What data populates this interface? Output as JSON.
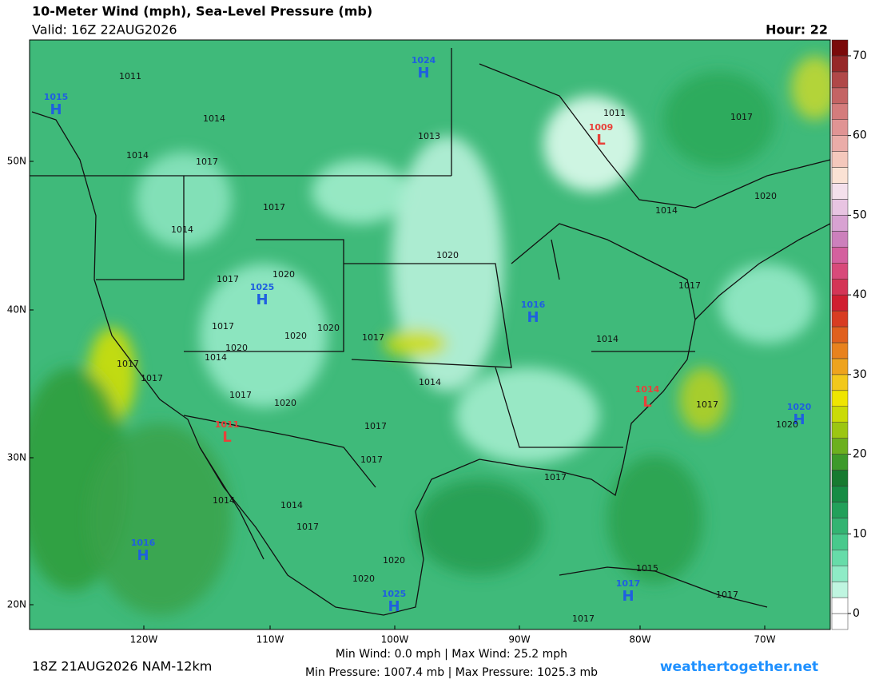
{
  "header": {
    "title": "10-Meter Wind (mph), Sea-Level Pressure (mb)",
    "valid": "Valid: 16Z 22AUG2026",
    "hour": "Hour: 22"
  },
  "axes": {
    "lat_labels": [
      "50N",
      "40N",
      "30N",
      "20N"
    ],
    "lon_labels": [
      "120W",
      "110W",
      "100W",
      "90W",
      "80W",
      "70W"
    ]
  },
  "pressure_centers": [
    {
      "value": "1015",
      "kind": "H"
    },
    {
      "value": "1024",
      "kind": "H"
    },
    {
      "value": "1009",
      "kind": "L"
    },
    {
      "value": "1025",
      "kind": "H"
    },
    {
      "value": "1016",
      "kind": "H"
    },
    {
      "value": "1014",
      "kind": "L"
    },
    {
      "value": "1020",
      "kind": "H"
    },
    {
      "value": "1011",
      "kind": "L"
    },
    {
      "value": "1016",
      "kind": "H"
    },
    {
      "value": "1025",
      "kind": "H"
    },
    {
      "value": "1017",
      "kind": "H"
    }
  ],
  "isobar_labels": [
    "1011",
    "1014",
    "1014",
    "1017",
    "1017",
    "1014",
    "1020",
    "1017",
    "1020",
    "1017",
    "1020",
    "1020",
    "1017",
    "1020",
    "1014",
    "1017",
    "1017",
    "1017",
    "1020",
    "1014",
    "1017",
    "1017",
    "1017",
    "1014",
    "1017",
    "1014",
    "1020",
    "1017",
    "1011",
    "1013",
    "1014",
    "1014",
    "1017",
    "1020",
    "1020",
    "1017",
    "1020",
    "1015",
    "1017",
    "1017"
  ],
  "colorbar": {
    "ylim": [
      -2,
      72
    ],
    "yticks": [
      0,
      10,
      20,
      30,
      40,
      50,
      60,
      70
    ],
    "colors": [
      "#ffffff",
      "#ffffff",
      "#bff5e0",
      "#8eebc6",
      "#66dca9",
      "#48c98c",
      "#33b472",
      "#22a05a",
      "#168c44",
      "#177a30",
      "#3d9a2a",
      "#6cb01e",
      "#9cc612",
      "#cadb06",
      "#efe500",
      "#f2c81c",
      "#eea31e",
      "#e8821e",
      "#e0601e",
      "#d83c22",
      "#d01e30",
      "#d43556",
      "#d84a7a",
      "#d4609e",
      "#cc80bc",
      "#d8a2d2",
      "#e8c4e2",
      "#f4e0ec",
      "#fbe2d4",
      "#f4c8bc",
      "#eaaca8",
      "#e09494",
      "#d47c7c",
      "#c46464",
      "#b04848",
      "#962828",
      "#7a0a0a"
    ]
  },
  "footer": {
    "run": "18Z 21AUG2026 NAM-12km",
    "wind": "Min Wind:   0.0 mph | Max Wind:  25.2 mph",
    "pressure": "Min Pressure: 1007.4 mb | Max Pressure: 1025.3 mb",
    "site": "weathertogether.net"
  }
}
